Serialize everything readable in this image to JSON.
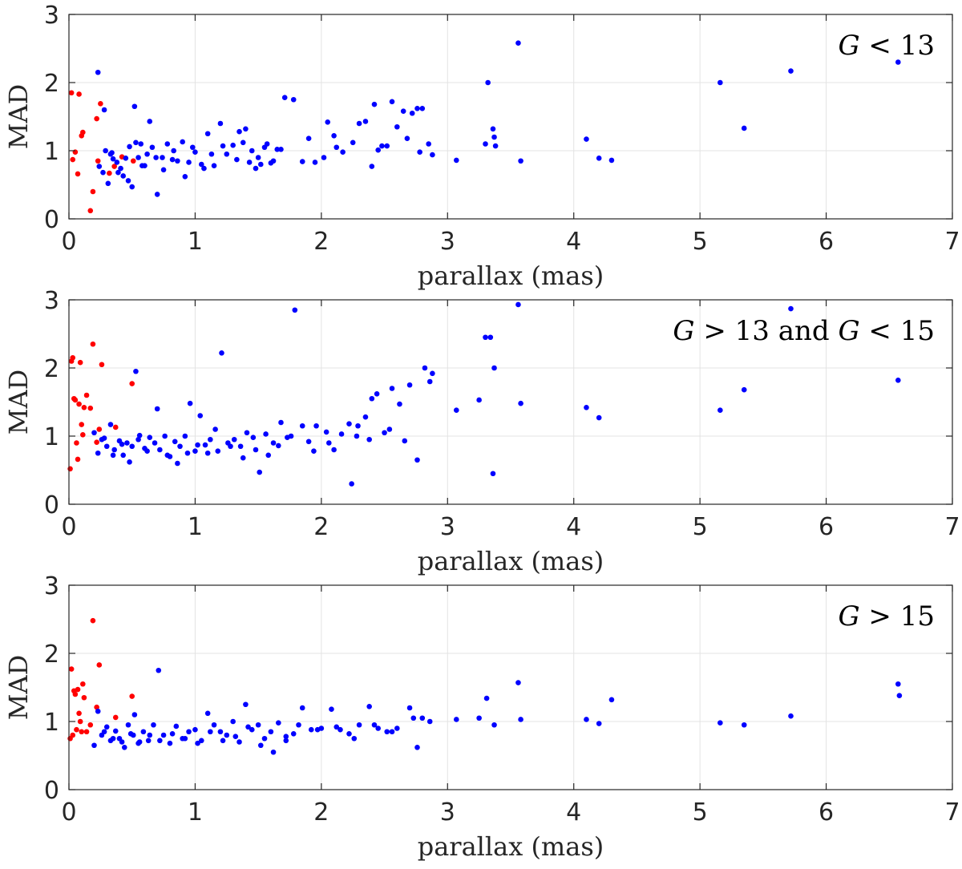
{
  "chart_data": [
    {
      "type": "scatter",
      "title": "",
      "xlabel": "parallax (mas)",
      "ylabel": "MAD",
      "xlim": [
        0,
        7
      ],
      "ylim": [
        0,
        3
      ],
      "xticks": [
        "0",
        "1",
        "2",
        "3",
        "4",
        "5",
        "6",
        "7"
      ],
      "yticks": [
        "0",
        "1",
        "2",
        "3"
      ],
      "grid": true,
      "annotation": {
        "var": "G",
        "op1": "<",
        "val1": "13",
        "joiner": "",
        "op2": "",
        "val2": ""
      },
      "series": [
        {
          "name": "red",
          "color": "#ff0000",
          "x": [
            0.02,
            0.03,
            0.05,
            0.07,
            0.08,
            0.1,
            0.11,
            0.17,
            0.19,
            0.22,
            0.23,
            0.25,
            0.32,
            0.36,
            0.42,
            0.51
          ],
          "y": [
            1.85,
            0.87,
            0.98,
            0.66,
            1.83,
            1.22,
            1.27,
            0.12,
            0.4,
            1.47,
            0.85,
            1.69,
            0.67,
            0.77,
            0.91,
            0.85
          ]
        },
        {
          "name": "blue",
          "color": "#0000ff",
          "x": [
            0.23,
            0.24,
            0.27,
            0.29,
            0.31,
            0.33,
            0.35,
            0.38,
            0.41,
            0.43,
            0.45,
            0.48,
            0.5,
            0.52,
            0.55,
            0.57,
            0.6,
            0.62,
            0.64,
            0.66,
            0.7,
            0.74,
            0.78,
            0.82,
            0.86,
            0.9,
            0.95,
            1.0,
            1.05,
            1.1,
            1.15,
            1.2,
            1.25,
            1.3,
            1.35,
            1.4,
            1.45,
            1.5,
            1.55,
            1.6,
            1.65,
            1.71,
            1.78,
            1.85,
            1.9,
            1.95,
            2.05,
            2.1,
            2.17,
            2.25,
            2.3,
            2.35,
            2.4,
            2.45,
            2.52,
            2.56,
            2.6,
            2.65,
            2.72,
            2.76,
            2.8,
            2.85,
            2.88,
            3.07,
            3.32,
            3.36,
            3.38,
            3.56,
            3.58,
            4.1,
            4.2,
            4.3,
            5.16,
            5.35,
            5.72,
            6.57,
            0.28,
            0.34,
            0.39,
            0.47,
            0.53,
            0.58,
            0.69,
            0.75,
            0.83,
            0.92,
            0.98,
            1.07,
            1.13,
            1.22,
            1.33,
            1.38,
            1.43,
            1.48,
            1.52,
            1.57,
            1.62,
            1.68,
            2.02,
            2.12,
            2.42,
            2.48,
            2.68,
            2.78,
            3.3,
            3.37
          ],
          "y": [
            2.15,
            0.77,
            0.68,
            1.0,
            0.52,
            0.95,
            0.88,
            0.83,
            0.74,
            0.63,
            0.89,
            1.06,
            0.47,
            1.65,
            0.9,
            1.1,
            0.78,
            0.95,
            1.43,
            1.05,
            0.36,
            0.9,
            1.1,
            0.87,
            0.85,
            1.13,
            0.83,
            0.98,
            0.8,
            1.25,
            0.78,
            1.4,
            0.95,
            1.08,
            1.28,
            1.32,
            1.0,
            0.9,
            1.05,
            0.82,
            1.02,
            1.78,
            1.75,
            0.84,
            1.18,
            0.83,
            1.42,
            1.22,
            0.98,
            1.12,
            1.4,
            1.43,
            0.77,
            1.01,
            1.07,
            1.72,
            1.35,
            1.58,
            1.55,
            1.62,
            1.62,
            1.1,
            0.94,
            0.86,
            2.0,
            1.32,
            1.07,
            2.58,
            0.85,
            1.17,
            0.89,
            0.86,
            2.0,
            1.33,
            2.17,
            2.3,
            1.6,
            0.97,
            0.68,
            0.56,
            1.12,
            0.78,
            0.9,
            0.72,
            1.0,
            0.62,
            1.05,
            0.74,
            0.95,
            1.07,
            0.87,
            1.12,
            0.83,
            0.74,
            0.8,
            1.1,
            0.85,
            1.02,
            0.9,
            1.05,
            1.68,
            1.07,
            1.18,
            0.98,
            1.1,
            1.2
          ]
        }
      ]
    },
    {
      "type": "scatter",
      "title": "",
      "xlabel": "parallax (mas)",
      "ylabel": "MAD",
      "xlim": [
        0,
        7
      ],
      "ylim": [
        0,
        3
      ],
      "xticks": [
        "0",
        "1",
        "2",
        "3",
        "4",
        "5",
        "6",
        "7"
      ],
      "yticks": [
        "0",
        "1",
        "2",
        "3"
      ],
      "grid": true,
      "annotation": {
        "var": "G",
        "op1": ">",
        "val1": "13",
        "joiner": "and",
        "op2": "<",
        "val2": "15"
      },
      "series": [
        {
          "name": "red",
          "color": "#ff0000",
          "x": [
            0.01,
            0.02,
            0.03,
            0.04,
            0.05,
            0.06,
            0.07,
            0.08,
            0.09,
            0.1,
            0.11,
            0.12,
            0.14,
            0.17,
            0.19,
            0.22,
            0.24,
            0.26,
            0.37,
            0.5
          ],
          "y": [
            0.52,
            2.1,
            2.15,
            1.55,
            1.53,
            0.9,
            0.66,
            1.47,
            2.08,
            1.17,
            1.02,
            1.42,
            1.6,
            1.41,
            2.35,
            0.91,
            1.1,
            2.05,
            1.13,
            1.77
          ]
        },
        {
          "name": "blue",
          "color": "#0000ff",
          "x": [
            0.2,
            0.23,
            0.26,
            0.3,
            0.33,
            0.36,
            0.4,
            0.43,
            0.46,
            0.5,
            0.53,
            0.56,
            0.6,
            0.64,
            0.68,
            0.72,
            0.76,
            0.8,
            0.84,
            0.88,
            0.92,
            0.96,
            1.0,
            1.04,
            1.08,
            1.12,
            1.16,
            1.21,
            1.26,
            1.31,
            1.36,
            1.41,
            1.46,
            1.51,
            1.56,
            1.62,
            1.68,
            1.73,
            1.79,
            1.85,
            1.9,
            1.96,
            2.04,
            2.1,
            2.16,
            2.22,
            2.24,
            2.29,
            2.35,
            2.4,
            2.44,
            2.5,
            2.56,
            2.62,
            2.7,
            2.76,
            2.82,
            2.86,
            2.88,
            3.07,
            3.25,
            3.3,
            3.34,
            3.36,
            3.37,
            3.56,
            3.58,
            4.1,
            4.2,
            5.16,
            5.35,
            5.72,
            6.57,
            0.28,
            0.35,
            0.42,
            0.48,
            0.55,
            0.62,
            0.7,
            0.78,
            0.86,
            0.94,
            1.02,
            1.1,
            1.18,
            1.28,
            1.38,
            1.48,
            1.58,
            1.66,
            1.76,
            1.94,
            2.06,
            2.28,
            2.38,
            2.54,
            2.66
          ],
          "y": [
            1.05,
            0.75,
            0.95,
            0.85,
            1.17,
            0.8,
            0.93,
            0.72,
            0.9,
            0.85,
            1.95,
            1.01,
            0.82,
            0.98,
            0.9,
            0.8,
            1.0,
            0.7,
            0.92,
            0.85,
            1.0,
            1.48,
            0.78,
            1.3,
            0.87,
            0.95,
            1.1,
            2.22,
            0.9,
            0.95,
            0.85,
            1.05,
            0.98,
            0.47,
            1.03,
            0.9,
            1.2,
            0.98,
            2.85,
            1.15,
            0.92,
            1.15,
            1.06,
            0.8,
            1.03,
            1.18,
            0.3,
            1.15,
            1.28,
            1.55,
            1.62,
            1.05,
            1.7,
            1.47,
            1.75,
            0.65,
            2.0,
            1.8,
            1.92,
            1.38,
            1.53,
            2.45,
            2.45,
            0.45,
            2.0,
            2.93,
            1.48,
            1.42,
            1.27,
            1.38,
            1.68,
            2.87,
            1.82,
            0.97,
            0.72,
            0.88,
            0.62,
            0.95,
            0.78,
            1.4,
            0.72,
            0.6,
            0.75,
            0.87,
            0.75,
            0.78,
            0.85,
            0.68,
            0.8,
            0.72,
            0.86,
            1.0,
            0.78,
            0.9,
            1.0,
            0.95,
            1.1,
            0.93
          ]
        }
      ]
    },
    {
      "type": "scatter",
      "title": "",
      "xlabel": "parallax (mas)",
      "ylabel": "MAD",
      "xlim": [
        0,
        7
      ],
      "ylim": [
        0,
        3
      ],
      "xticks": [
        "0",
        "1",
        "2",
        "3",
        "4",
        "5",
        "6",
        "7"
      ],
      "yticks": [
        "0",
        "1",
        "2",
        "3"
      ],
      "grid": true,
      "annotation": {
        "var": "G",
        "op1": ">",
        "val1": "15",
        "joiner": "",
        "op2": "",
        "val2": ""
      },
      "series": [
        {
          "name": "red",
          "color": "#ff0000",
          "x": [
            0.01,
            0.02,
            0.03,
            0.04,
            0.05,
            0.06,
            0.07,
            0.08,
            0.09,
            0.1,
            0.11,
            0.12,
            0.14,
            0.17,
            0.19,
            0.22,
            0.24,
            0.37,
            0.5
          ],
          "y": [
            0.75,
            1.77,
            0.8,
            1.45,
            1.4,
            0.88,
            1.47,
            1.12,
            1.0,
            0.85,
            1.55,
            1.35,
            0.85,
            0.95,
            2.48,
            1.21,
            1.83,
            1.06,
            1.37
          ]
        },
        {
          "name": "blue",
          "color": "#0000ff",
          "x": [
            0.2,
            0.23,
            0.26,
            0.3,
            0.33,
            0.37,
            0.4,
            0.44,
            0.47,
            0.51,
            0.55,
            0.59,
            0.63,
            0.67,
            0.71,
            0.75,
            0.8,
            0.85,
            0.9,
            0.95,
            1.0,
            1.05,
            1.1,
            1.15,
            1.2,
            1.25,
            1.3,
            1.35,
            1.4,
            1.45,
            1.5,
            1.55,
            1.6,
            1.66,
            1.72,
            1.78,
            1.85,
            1.92,
            2.0,
            2.08,
            2.15,
            2.22,
            2.3,
            2.38,
            2.45,
            2.52,
            2.6,
            2.7,
            2.76,
            2.8,
            2.86,
            3.07,
            3.25,
            3.31,
            3.37,
            3.56,
            3.58,
            4.1,
            4.2,
            4.3,
            5.16,
            5.35,
            5.72,
            6.57,
            6.58,
            0.28,
            0.35,
            0.42,
            0.49,
            0.56,
            0.64,
            0.72,
            0.82,
            0.92,
            1.02,
            1.12,
            1.22,
            1.32,
            1.42,
            1.52,
            1.62,
            1.72,
            1.82,
            1.97,
            2.12,
            2.26,
            2.42,
            2.56,
            2.73,
            0.52
          ],
          "y": [
            0.65,
            1.15,
            0.8,
            0.92,
            0.72,
            0.86,
            0.75,
            0.62,
            0.95,
            0.8,
            0.68,
            0.85,
            0.72,
            0.95,
            1.75,
            0.8,
            0.68,
            0.93,
            0.75,
            0.85,
            0.88,
            0.72,
            1.12,
            0.95,
            0.85,
            0.8,
            1.0,
            0.7,
            1.25,
            0.88,
            0.95,
            0.75,
            0.85,
            0.98,
            0.72,
            0.82,
            1.2,
            0.88,
            0.9,
            1.18,
            0.88,
            0.82,
            0.95,
            1.22,
            0.9,
            0.85,
            0.9,
            1.2,
            0.62,
            1.05,
            1.0,
            1.03,
            1.05,
            1.34,
            0.95,
            1.57,
            1.03,
            1.03,
            0.97,
            1.32,
            0.98,
            0.95,
            1.08,
            1.55,
            1.38,
            0.85,
            0.75,
            0.7,
            0.82,
            0.7,
            0.8,
            0.72,
            0.82,
            0.75,
            0.68,
            0.85,
            0.72,
            0.78,
            0.92,
            0.65,
            0.55,
            0.78,
            0.95,
            0.88,
            0.92,
            0.75,
            0.95,
            0.85,
            1.05,
            1.1
          ]
        }
      ]
    }
  ]
}
